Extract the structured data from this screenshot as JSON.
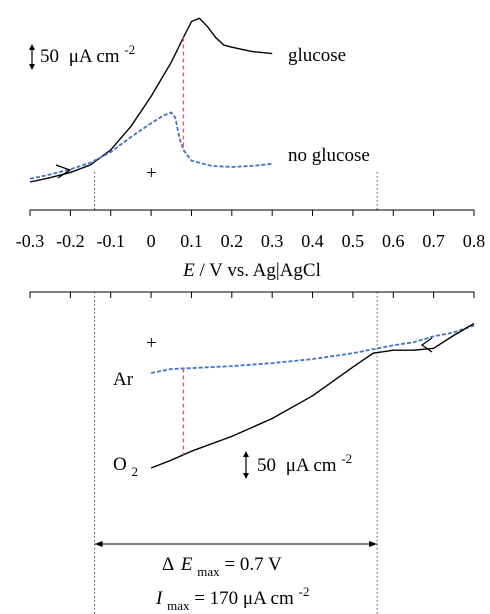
{
  "chart_data": {
    "type": "line",
    "x_axis": {
      "label_parts": {
        "italic": "E",
        "rest": " / V vs. Ag|AgCl"
      },
      "range": [
        -0.3,
        0.8
      ],
      "ticks": [
        -0.3,
        -0.2,
        -0.1,
        0,
        0.1,
        0.2,
        0.3,
        0.4,
        0.5,
        0.6,
        0.7,
        0.8
      ],
      "tick_labels": [
        "-0.3",
        "-0.2",
        "-0.1",
        "0",
        "0.1",
        "0.2",
        "0.3",
        "0.4",
        "0.5",
        "0.6",
        "0.7",
        "0.8"
      ]
    },
    "panels": [
      {
        "id": "top",
        "scale_bar": {
          "value": "50",
          "unit_main": "μA cm",
          "unit_sup": "-2"
        },
        "plus_marker": "+",
        "series": [
          {
            "name": "glucose",
            "color": "#000000",
            "style": "solid",
            "points": [
              [
                -0.3,
                0
              ],
              [
                -0.25,
                4
              ],
              [
                -0.2,
                9
              ],
              [
                -0.15,
                16
              ],
              [
                -0.1,
                30
              ],
              [
                -0.05,
                52
              ],
              [
                0.0,
                80
              ],
              [
                0.05,
                112
              ],
              [
                0.08,
                135
              ],
              [
                0.1,
                150
              ],
              [
                0.12,
                153
              ],
              [
                0.14,
                145
              ],
              [
                0.16,
                135
              ],
              [
                0.18,
                128
              ],
              [
                0.2,
                126
              ],
              [
                0.25,
                122
              ],
              [
                0.3,
                120
              ]
            ]
          },
          {
            "name": "no glucose",
            "color": "#4472C4",
            "style": "dashed",
            "points": [
              [
                -0.3,
                3
              ],
              [
                -0.25,
                7
              ],
              [
                -0.2,
                12
              ],
              [
                -0.15,
                18
              ],
              [
                -0.1,
                28
              ],
              [
                -0.05,
                42
              ],
              [
                0.0,
                55
              ],
              [
                0.03,
                62
              ],
              [
                0.05,
                65
              ],
              [
                0.06,
                60
              ],
              [
                0.07,
                42
              ],
              [
                0.08,
                30
              ],
              [
                0.1,
                20
              ],
              [
                0.15,
                15
              ],
              [
                0.2,
                14
              ],
              [
                0.25,
                15
              ],
              [
                0.3,
                17
              ]
            ]
          }
        ],
        "ref_line": {
          "x": 0.08,
          "color": "#E06060"
        }
      },
      {
        "id": "bottom",
        "scale_bar": {
          "value": "50",
          "unit_main": "μA cm",
          "unit_sup": "-2"
        },
        "plus_marker": "+",
        "series": [
          {
            "name": "Ar",
            "color": "#4472C4",
            "style": "dashed",
            "points": [
              [
                0.0,
                0
              ],
              [
                0.05,
                4
              ],
              [
                0.1,
                5
              ],
              [
                0.2,
                7
              ],
              [
                0.3,
                10
              ],
              [
                0.4,
                14
              ],
              [
                0.5,
                20
              ],
              [
                0.55,
                24
              ],
              [
                0.6,
                28
              ],
              [
                0.65,
                31
              ],
              [
                0.7,
                37
              ],
              [
                0.75,
                41
              ],
              [
                0.8,
                48
              ]
            ]
          },
          {
            "name": "O2",
            "color": "#000000",
            "style": "solid",
            "points": [
              [
                0.0,
                -96
              ],
              [
                0.05,
                -88
              ],
              [
                0.1,
                -79
              ],
              [
                0.2,
                -64
              ],
              [
                0.3,
                -46
              ],
              [
                0.4,
                -23
              ],
              [
                0.5,
                6
              ],
              [
                0.55,
                20
              ],
              [
                0.6,
                23
              ],
              [
                0.65,
                23
              ],
              [
                0.7,
                25
              ],
              [
                0.75,
                38
              ],
              [
                0.8,
                50
              ]
            ]
          }
        ],
        "ref_line": {
          "x": 0.08,
          "color": "#E06060"
        }
      }
    ],
    "guide_lines": [
      -0.14,
      0.56
    ],
    "annotations": {
      "delta_e": {
        "symbol": "Δ",
        "var": "E",
        "sub": "max",
        "value": " = 0.7 V"
      },
      "i_max": {
        "var": "I",
        "sub": "max",
        "value_main": " = 170 μA cm",
        "value_sup": "-2"
      }
    },
    "series_labels": {
      "glucose": "glucose",
      "no_glucose": "no glucose",
      "ar": "Ar",
      "o2_main": "O",
      "o2_sub": "2"
    }
  }
}
